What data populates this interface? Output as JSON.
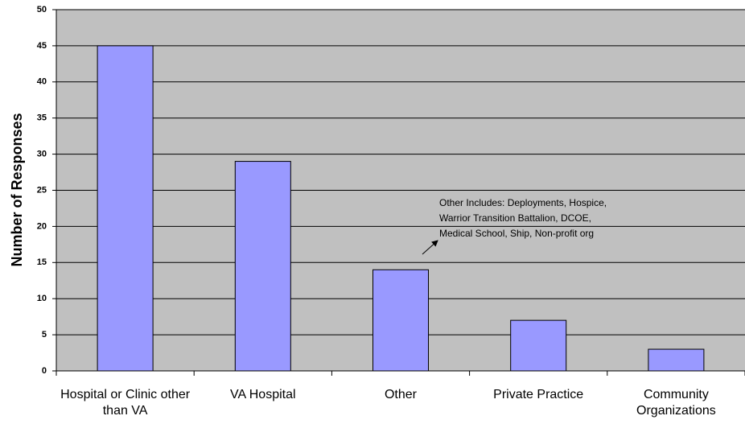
{
  "chart_data": {
    "type": "bar",
    "y_label": "Number of Responses",
    "categories": [
      "Hospital or Clinic other than VA",
      "VA Hospital",
      "Other",
      "Private Practice",
      "Community Organizations"
    ],
    "values": [
      45,
      29,
      14,
      7,
      3
    ],
    "color": "#9999ff",
    "ylim": [
      0,
      50
    ],
    "yticks": [
      0,
      5,
      10,
      15,
      20,
      25,
      30,
      35,
      40,
      45,
      50
    ],
    "grid": true,
    "annotation": [
      "Other Includes: Deployments, Hospice,",
      "Warrior Transition Battalion, DCOE,",
      "Medical School, Ship, Non-profit org"
    ]
  }
}
